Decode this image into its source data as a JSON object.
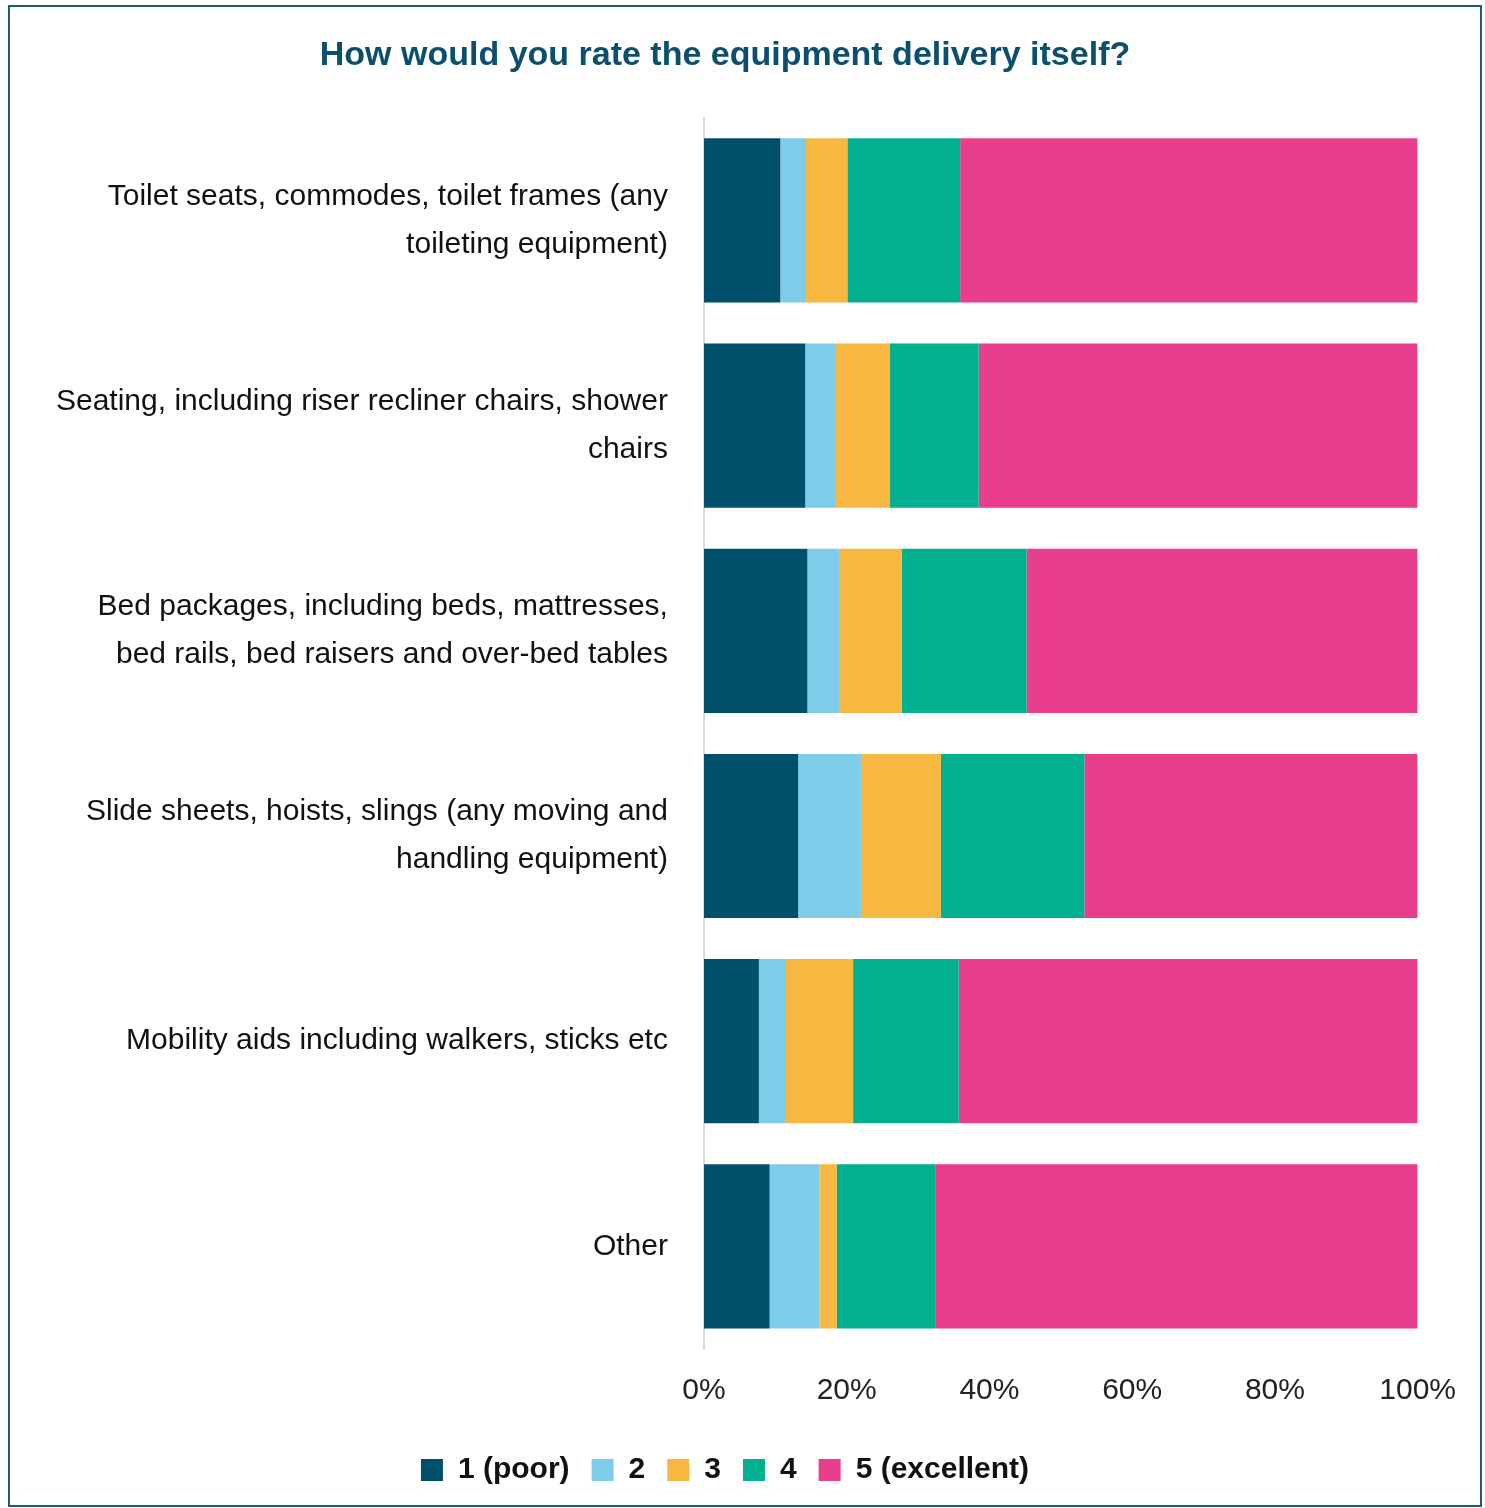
{
  "chart_data": {
    "type": "bar",
    "title": "How would you rate the equipment delivery itself?",
    "orientation": "horizontal",
    "stacked": true,
    "grid": false,
    "legend": "bottom",
    "categories": [
      "Toilet seats, commodes, toilet frames (any toileting equipment)",
      "Seating, including riser recliner chairs, shower chairs",
      "Bed packages, including beds, mattresses, bed rails, bed raisers and over-bed tables",
      "Slide sheets, hoists, slings (any moving and handling equipment)",
      "Mobility aids including walkers, sticks etc",
      "Other"
    ],
    "series": [
      {
        "name": "1 (poor)",
        "color": "#004f6b",
        "values": [
          10.7,
          14.2,
          14.5,
          13.2,
          7.7,
          9.2
        ]
      },
      {
        "name": "2",
        "color": "#7ecbea",
        "values": [
          3.6,
          4.3,
          4.4,
          8.8,
          3.8,
          7.0
        ]
      },
      {
        "name": "3",
        "color": "#f7b841",
        "values": [
          5.8,
          7.5,
          8.8,
          11.2,
          9.4,
          2.4
        ]
      },
      {
        "name": "4",
        "color": "#00b08e",
        "values": [
          15.8,
          12.5,
          17.5,
          20.1,
          14.8,
          13.8
        ]
      },
      {
        "name": "5 (excellent)",
        "color": "#e83e8c",
        "values": [
          64.1,
          61.5,
          54.8,
          46.7,
          64.3,
          67.6
        ]
      }
    ],
    "xlim": [
      0,
      100
    ],
    "xticks": [
      {
        "value": 0,
        "label": "0%"
      },
      {
        "value": 20,
        "label": "20%"
      },
      {
        "value": 40,
        "label": "40%"
      },
      {
        "value": 60,
        "label": "60%"
      },
      {
        "value": 80,
        "label": "80%"
      },
      {
        "value": 100,
        "label": "100%"
      }
    ]
  }
}
